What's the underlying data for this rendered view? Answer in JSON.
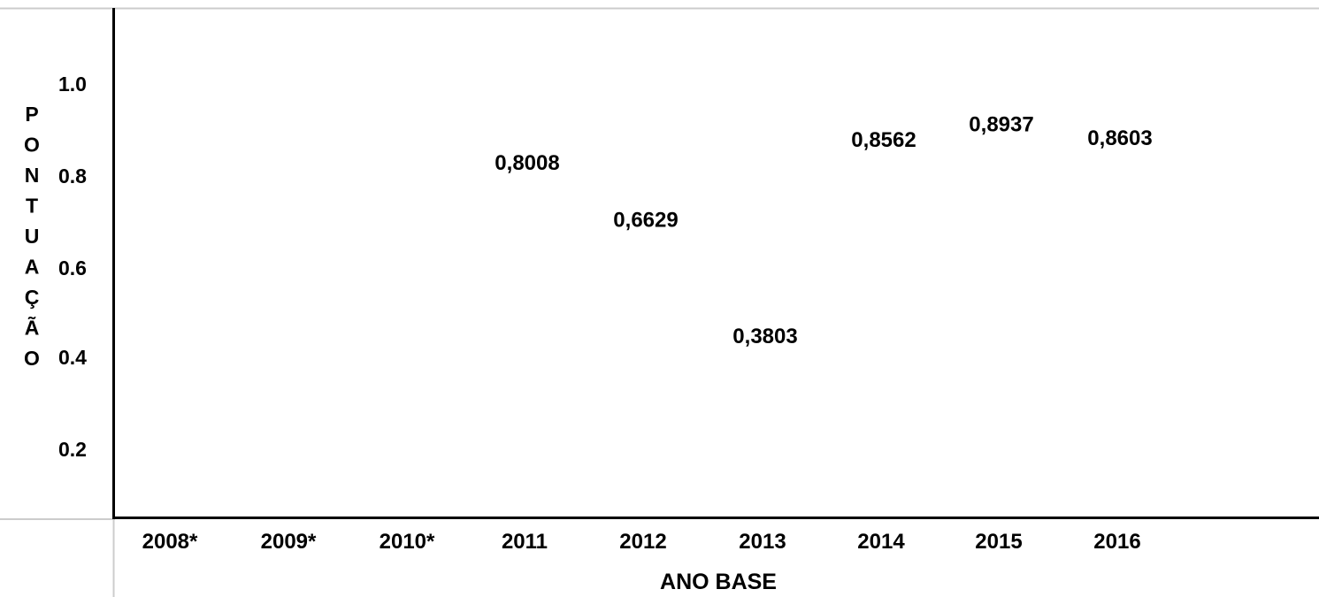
{
  "chart_data": {
    "type": "table",
    "title": "",
    "xlabel": "ANO BASE",
    "ylabel": "PONTUAÇÃO",
    "categories": [
      "2008*",
      "2009*",
      "2010*",
      "2011",
      "2012",
      "2013",
      "2014",
      "2015",
      "2016"
    ],
    "values": [
      null,
      null,
      null,
      0.8008,
      0.6629,
      0.3803,
      0.8562,
      0.8937,
      0.8603
    ],
    "value_labels": [
      "",
      "",
      "",
      "0,8008",
      "0,6629",
      "0,3803",
      "0,8562",
      "0,8937",
      "0,8603"
    ],
    "y_ticks": [
      "1.0",
      "0.8",
      "0.6",
      "0.4",
      "0.2"
    ],
    "ylim": [
      0,
      1.0
    ],
    "grid": false,
    "colors": {
      "text": "#000000",
      "axis": "#000000",
      "grid_lines": "#cccccc"
    }
  }
}
